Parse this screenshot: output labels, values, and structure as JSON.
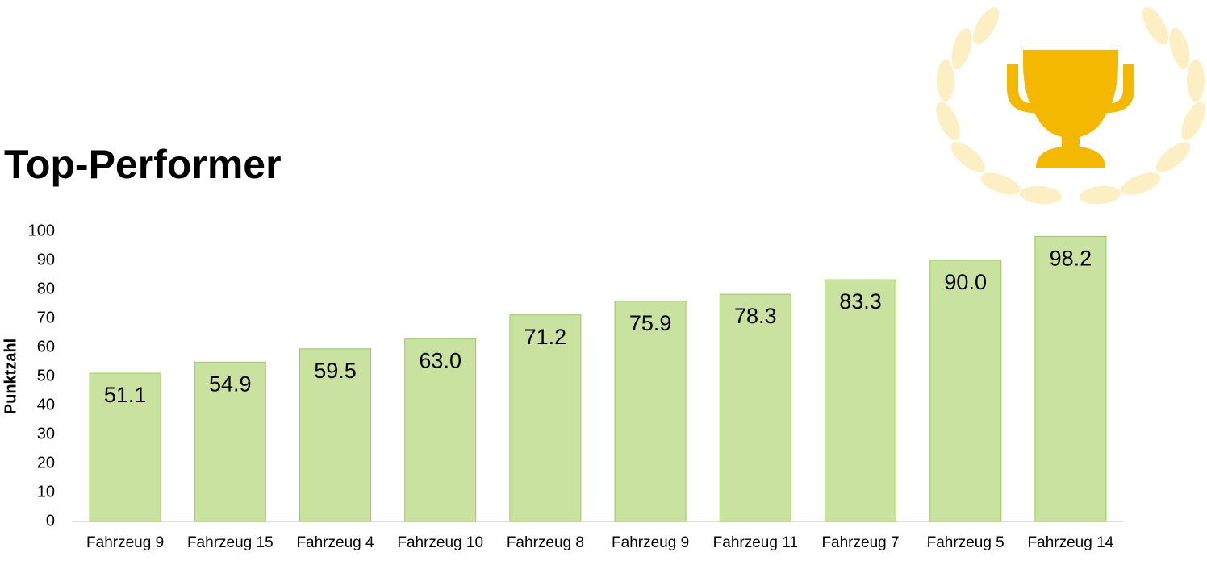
{
  "chart_data": {
    "type": "bar",
    "title": "Top-Performer",
    "y_label": "Punktzahl",
    "categories": [
      "Fahrzeug 9",
      "Fahrzeug 15",
      "Fahrzeug 4",
      "Fahrzeug 10",
      "Fahrzeug 8",
      "Fahrzeug 9",
      "Fahrzeug 11",
      "Fahrzeug 7",
      "Fahrzeug 5",
      "Fahrzeug 14"
    ],
    "values": [
      51.1,
      54.9,
      59.5,
      63.0,
      71.2,
      75.9,
      78.3,
      83.3,
      90.0,
      98.2
    ],
    "value_labels": [
      "51.1",
      "54.9",
      "59.5",
      "63.0",
      "71.2",
      "75.9",
      "78.3",
      "83.3",
      "90.0",
      "98.2"
    ],
    "color": "#c9e2a0",
    "edge_color": "#9cc95a",
    "ylim": [
      0,
      100
    ],
    "yticks": [
      0,
      10,
      20,
      30,
      40,
      50,
      60,
      70,
      80,
      90,
      100
    ],
    "grid": false
  }
}
